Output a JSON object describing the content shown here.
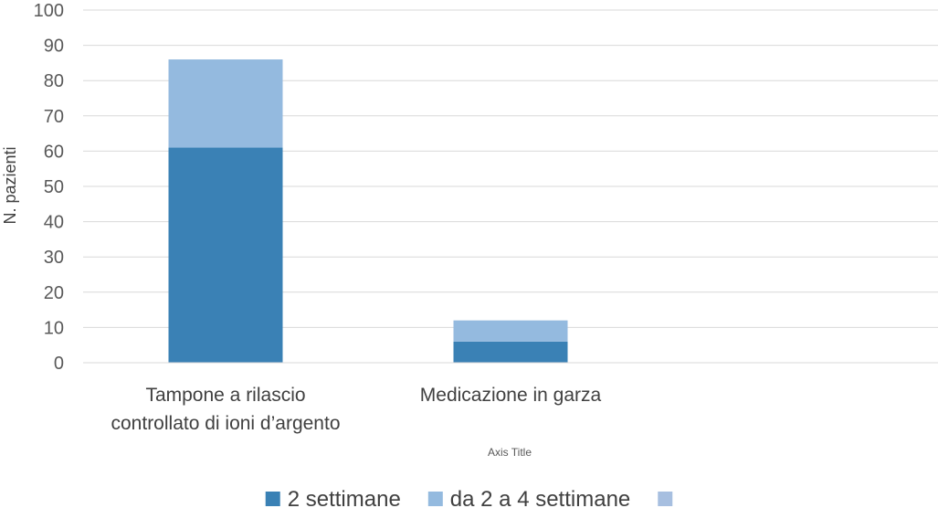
{
  "chart_data": {
    "type": "bar",
    "stacked": true,
    "categories": [
      [
        "Tampone a rilascio",
        "controllato di ioni d’argento"
      ],
      [
        "Medicazione in garza"
      ],
      [
        ""
      ]
    ],
    "series": [
      {
        "name": "2 settimane",
        "color": "#3a81b5",
        "values": [
          61,
          6,
          0
        ]
      },
      {
        "name": "da 2 a 4 settimane",
        "color": "#94badf",
        "values": [
          25,
          6,
          0
        ]
      },
      {
        "name": "",
        "color": "#a7bfe0",
        "values": [
          0,
          0,
          0
        ]
      }
    ],
    "xlabel": "Axis Title",
    "ylabel": "N. pazienti",
    "ylim": [
      0,
      100
    ],
    "yticks": [
      0,
      10,
      20,
      30,
      40,
      50,
      60,
      70,
      80,
      90,
      100
    ],
    "grid": true,
    "gridColor": "#d9d9d9",
    "legend": "bottom"
  }
}
